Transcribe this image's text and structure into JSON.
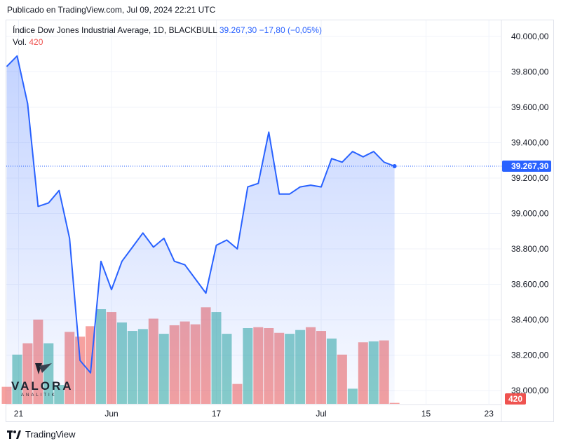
{
  "published": "Publicado en TradingView.com, Jul 09, 2024 22:21 UTC",
  "legend": {
    "symbol": "Índice Dow Jones Industrial Average, 1D, BLACKBULL",
    "value": "39.267,30",
    "change": "−17,80 (−0,05%)",
    "vol_label": "Vol.",
    "vol_value": "420"
  },
  "footer": {
    "brand": "TradingView"
  },
  "watermark": {
    "name": "VALORA",
    "sub": "ANALITIK"
  },
  "colors": {
    "line": "#2962ff",
    "up_volume": "#26a69a",
    "down_volume": "#ef5350",
    "grid": "#f0f3fa",
    "last_label": "#2962ff",
    "vol_label": "#ef5350"
  },
  "chart_data": {
    "type": "line",
    "ylim": [
      37950,
      40100
    ],
    "yticks": [
      "40.000,00",
      "39.800,00",
      "39.600,00",
      "39.400,00",
      "39.200,00",
      "39.000,00",
      "38.800,00",
      "38.600,00",
      "38.400,00",
      "38.200,00",
      "38.000,00"
    ],
    "yticks_values": [
      40000,
      39800,
      39600,
      39400,
      39200,
      39000,
      38800,
      38600,
      38400,
      38200,
      38000
    ],
    "xticks": [
      {
        "label": "21",
        "index": 1
      },
      {
        "label": "Jun",
        "index": 10
      },
      {
        "label": "17",
        "index": 20
      },
      {
        "label": "Jul",
        "index": 30
      },
      {
        "label": "15",
        "index": 40
      },
      {
        "label": "23",
        "index": 46
      }
    ],
    "last_value_label": "39.267,30",
    "last_value": 39267.3,
    "close": [
      39830,
      39890,
      39620,
      39040,
      39060,
      39130,
      38860,
      38170,
      38100,
      38730,
      38570,
      38730,
      38810,
      38890,
      38810,
      38860,
      38730,
      38710,
      38630,
      38550,
      38820,
      38850,
      38800,
      39150,
      39170,
      39460,
      39110,
      39110,
      39150,
      39160,
      39150,
      39310,
      39290,
      39350,
      39320,
      39350,
      39290,
      39267.3
    ],
    "volume_label": "420",
    "volume": [
      {
        "v": 0.18,
        "up": false
      },
      {
        "v": 0.52,
        "up": true
      },
      {
        "v": 0.64,
        "up": false
      },
      {
        "v": 0.89,
        "up": false
      },
      {
        "v": 0.64,
        "up": true
      },
      {
        "v": 0.2,
        "up": true
      },
      {
        "v": 0.76,
        "up": false
      },
      {
        "v": 0.71,
        "up": false
      },
      {
        "v": 0.82,
        "up": false
      },
      {
        "v": 1.0,
        "up": true
      },
      {
        "v": 0.97,
        "up": false
      },
      {
        "v": 0.86,
        "up": true
      },
      {
        "v": 0.77,
        "up": true
      },
      {
        "v": 0.79,
        "up": true
      },
      {
        "v": 0.9,
        "up": false
      },
      {
        "v": 0.74,
        "up": true
      },
      {
        "v": 0.83,
        "up": false
      },
      {
        "v": 0.87,
        "up": false
      },
      {
        "v": 0.84,
        "up": false
      },
      {
        "v": 1.02,
        "up": false
      },
      {
        "v": 0.97,
        "up": true
      },
      {
        "v": 0.74,
        "up": true
      },
      {
        "v": 0.21,
        "up": false
      },
      {
        "v": 0.8,
        "up": true
      },
      {
        "v": 0.81,
        "up": false
      },
      {
        "v": 0.8,
        "up": false
      },
      {
        "v": 0.75,
        "up": false
      },
      {
        "v": 0.74,
        "up": true
      },
      {
        "v": 0.78,
        "up": true
      },
      {
        "v": 0.81,
        "up": false
      },
      {
        "v": 0.77,
        "up": false
      },
      {
        "v": 0.69,
        "up": true
      },
      {
        "v": 0.52,
        "up": false
      },
      {
        "v": 0.16,
        "up": true
      },
      {
        "v": 0.65,
        "up": false
      },
      {
        "v": 0.66,
        "up": true
      },
      {
        "v": 0.67,
        "up": false
      },
      {
        "v": 0.01,
        "up": false
      }
    ]
  }
}
